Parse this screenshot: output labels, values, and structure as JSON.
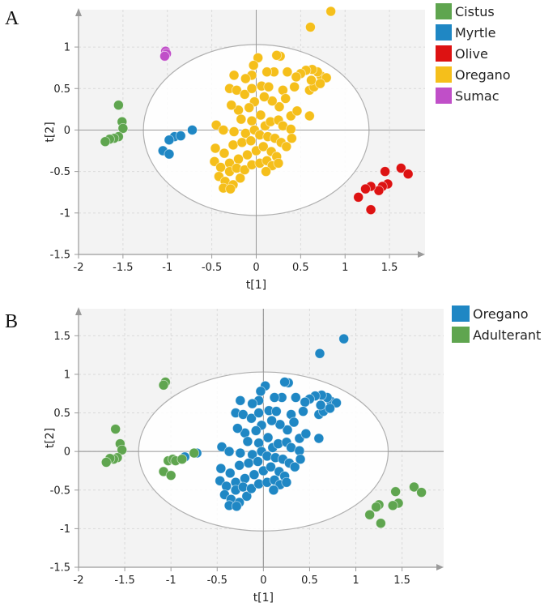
{
  "chart_data": [
    {
      "type": "scatter",
      "panel_label": "A",
      "xlabel": "t[1]",
      "ylabel": "t[2]",
      "xlim": [
        -2,
        1.9
      ],
      "ylim": [
        -1.5,
        1.45
      ],
      "x_ticks": [
        -2,
        -1.5,
        -1,
        -0.5,
        0,
        0.5,
        1,
        1.5
      ],
      "x_tick_labels": [
        "-2",
        "-1.5",
        "-1",
        "-0.5",
        "0",
        "0.5",
        "1",
        "1.5"
      ],
      "y_ticks": [
        -1.5,
        -1,
        -0.5,
        0,
        0.5,
        1
      ],
      "y_tick_labels": [
        "-1.5",
        "-1",
        "-0.5",
        "0",
        "0.5",
        "1"
      ],
      "grid": true,
      "ellipse": {
        "cx": 0,
        "cy": 0,
        "rx": 1.27,
        "ry": 1.03
      },
      "legend_position": "right",
      "series": [
        {
          "name": "Cistus",
          "color": "#5fa54f",
          "points": [
            [
              -1.55,
              0.3
            ],
            [
              -1.51,
              0.1
            ],
            [
              -1.5,
              0.02
            ],
            [
              -1.55,
              -0.08
            ],
            [
              -1.6,
              -0.1
            ],
            [
              -1.65,
              -0.11
            ],
            [
              -1.7,
              -0.14
            ]
          ]
        },
        {
          "name": "Myrtle",
          "color": "#1f87c4",
          "points": [
            [
              -0.92,
              -0.08
            ],
            [
              -0.98,
              -0.12
            ],
            [
              -1.05,
              -0.25
            ],
            [
              -0.98,
              -0.29
            ],
            [
              -0.85,
              -0.07
            ],
            [
              -0.72,
              0.0
            ]
          ]
        },
        {
          "name": "Olive",
          "color": "#dd1212",
          "points": [
            [
              1.63,
              -0.46
            ],
            [
              1.71,
              -0.53
            ],
            [
              1.45,
              -0.5
            ],
            [
              1.48,
              -0.65
            ],
            [
              1.42,
              -0.68
            ],
            [
              1.38,
              -0.73
            ],
            [
              1.29,
              -0.68
            ],
            [
              1.23,
              -0.71
            ],
            [
              1.15,
              -0.81
            ],
            [
              1.29,
              -0.96
            ]
          ]
        },
        {
          "name": "Oregano",
          "color": "#f5bf1b",
          "points": [
            [
              0.84,
              1.43
            ],
            [
              0.61,
              1.24
            ],
            [
              0.27,
              0.89
            ],
            [
              0.23,
              0.9
            ],
            [
              0.02,
              0.87
            ],
            [
              -0.03,
              0.78
            ],
            [
              0.73,
              0.65
            ],
            [
              0.79,
              0.63
            ],
            [
              0.69,
              0.7
            ],
            [
              0.63,
              0.73
            ],
            [
              0.56,
              0.72
            ],
            [
              0.5,
              0.68
            ],
            [
              0.45,
              0.64
            ],
            [
              0.35,
              0.7
            ],
            [
              0.2,
              0.7
            ],
            [
              0.12,
              0.7
            ],
            [
              -0.05,
              0.66
            ],
            [
              -0.12,
              0.62
            ],
            [
              -0.25,
              0.66
            ],
            [
              -0.3,
              0.5
            ],
            [
              -0.22,
              0.48
            ],
            [
              -0.13,
              0.43
            ],
            [
              -0.05,
              0.5
            ],
            [
              0.06,
              0.53
            ],
            [
              0.14,
              0.52
            ],
            [
              0.3,
              0.48
            ],
            [
              0.33,
              0.38
            ],
            [
              0.43,
              0.52
            ],
            [
              0.6,
              0.48
            ],
            [
              0.65,
              0.52
            ],
            [
              0.62,
              0.6
            ],
            [
              0.72,
              0.56
            ],
            [
              0.6,
              0.17
            ],
            [
              0.26,
              0.28
            ],
            [
              0.18,
              0.35
            ],
            [
              0.09,
              0.4
            ],
            [
              -0.02,
              0.34
            ],
            [
              -0.08,
              0.27
            ],
            [
              -0.2,
              0.24
            ],
            [
              -0.28,
              0.3
            ],
            [
              -0.17,
              0.13
            ],
            [
              -0.05,
              0.11
            ],
            [
              0.05,
              0.18
            ],
            [
              0.1,
              0.05
            ],
            [
              0.16,
              0.1
            ],
            [
              0.25,
              0.12
            ],
            [
              0.39,
              0.17
            ],
            [
              0.46,
              0.23
            ],
            [
              0.3,
              0.05
            ],
            [
              0.39,
              0.01
            ],
            [
              -0.45,
              0.06
            ],
            [
              -0.37,
              0.0
            ],
            [
              -0.25,
              -0.02
            ],
            [
              -0.12,
              -0.04
            ],
            [
              -0.02,
              0.0
            ],
            [
              0.04,
              -0.06
            ],
            [
              0.13,
              -0.08
            ],
            [
              0.21,
              -0.1
            ],
            [
              0.28,
              -0.15
            ],
            [
              -0.47,
              -0.38
            ],
            [
              -0.4,
              -0.45
            ],
            [
              -0.3,
              -0.4
            ],
            [
              -0.2,
              -0.35
            ],
            [
              -0.1,
              -0.3
            ],
            [
              0.0,
              -0.25
            ],
            [
              0.08,
              -0.2
            ],
            [
              0.17,
              -0.26
            ],
            [
              0.23,
              -0.32
            ],
            [
              -0.42,
              -0.56
            ],
            [
              -0.35,
              -0.62
            ],
            [
              -0.26,
              -0.66
            ],
            [
              -0.18,
              -0.58
            ],
            [
              -0.3,
              -0.5
            ],
            [
              -0.22,
              -0.46
            ],
            [
              -0.13,
              -0.48
            ],
            [
              -0.05,
              -0.42
            ],
            [
              0.04,
              -0.4
            ],
            [
              0.12,
              -0.37
            ],
            [
              0.18,
              -0.43
            ],
            [
              -0.36,
              -0.28
            ],
            [
              -0.46,
              -0.22
            ],
            [
              -0.26,
              -0.18
            ],
            [
              -0.16,
              -0.15
            ],
            [
              -0.06,
              -0.13
            ],
            [
              -0.37,
              -0.7
            ],
            [
              -0.29,
              -0.71
            ],
            [
              0.11,
              -0.5
            ],
            [
              0.25,
              -0.4
            ],
            [
              0.34,
              -0.2
            ],
            [
              0.4,
              -0.1
            ]
          ]
        },
        {
          "name": "Sumac",
          "color": "#c04fc8",
          "points": [
            [
              -1.02,
              0.95
            ],
            [
              -1.01,
              0.92
            ],
            [
              -1.03,
              0.89
            ]
          ]
        }
      ]
    },
    {
      "type": "scatter",
      "panel_label": "B",
      "xlabel": "t[1]",
      "ylabel": "t[2]",
      "xlim": [
        -2,
        1.95
      ],
      "ylim": [
        -1.5,
        1.85
      ],
      "x_ticks": [
        -2,
        -1.5,
        -1,
        -0.5,
        0,
        0.5,
        1,
        1.5
      ],
      "x_tick_labels": [
        "-2",
        "-1.5",
        "-1",
        "-0.5",
        "0",
        "0.5",
        "1",
        "1.5"
      ],
      "y_ticks": [
        -1.5,
        -1,
        -0.5,
        0,
        0.5,
        1,
        1.5
      ],
      "y_tick_labels": [
        "-1.5",
        "-1",
        "-0.5",
        "0",
        "0.5",
        "1",
        "1.5"
      ],
      "grid": true,
      "ellipse": {
        "cx": 0,
        "cy": 0,
        "rx": 1.35,
        "ry": 1.03
      },
      "legend_position": "right",
      "series": [
        {
          "name": "Oregano",
          "color": "#1f87c4",
          "points": [
            [
              0.87,
              1.46
            ],
            [
              0.61,
              1.27
            ],
            [
              0.27,
              0.89
            ],
            [
              0.23,
              0.9
            ],
            [
              0.02,
              0.85
            ],
            [
              -0.03,
              0.78
            ],
            [
              0.73,
              0.65
            ],
            [
              0.79,
              0.63
            ],
            [
              0.69,
              0.7
            ],
            [
              0.63,
              0.73
            ],
            [
              0.56,
              0.72
            ],
            [
              0.5,
              0.68
            ],
            [
              0.45,
              0.64
            ],
            [
              0.35,
              0.7
            ],
            [
              0.2,
              0.7
            ],
            [
              0.12,
              0.7
            ],
            [
              -0.05,
              0.66
            ],
            [
              -0.12,
              0.62
            ],
            [
              -0.25,
              0.66
            ],
            [
              -0.3,
              0.5
            ],
            [
              -0.22,
              0.48
            ],
            [
              -0.13,
              0.43
            ],
            [
              -0.05,
              0.5
            ],
            [
              0.06,
              0.53
            ],
            [
              0.14,
              0.52
            ],
            [
              0.3,
              0.48
            ],
            [
              0.33,
              0.38
            ],
            [
              0.43,
              0.52
            ],
            [
              0.6,
              0.48
            ],
            [
              0.65,
              0.52
            ],
            [
              0.62,
              0.6
            ],
            [
              0.72,
              0.56
            ],
            [
              0.6,
              0.17
            ],
            [
              0.26,
              0.28
            ],
            [
              0.18,
              0.35
            ],
            [
              0.09,
              0.4
            ],
            [
              -0.02,
              0.34
            ],
            [
              -0.08,
              0.27
            ],
            [
              -0.2,
              0.24
            ],
            [
              -0.28,
              0.3
            ],
            [
              -0.17,
              0.13
            ],
            [
              -0.05,
              0.11
            ],
            [
              0.05,
              0.18
            ],
            [
              0.1,
              0.05
            ],
            [
              0.16,
              0.1
            ],
            [
              0.25,
              0.12
            ],
            [
              0.39,
              0.17
            ],
            [
              0.46,
              0.23
            ],
            [
              0.3,
              0.05
            ],
            [
              0.39,
              0.01
            ],
            [
              -0.45,
              0.06
            ],
            [
              -0.37,
              0.0
            ],
            [
              -0.25,
              -0.02
            ],
            [
              -0.12,
              -0.04
            ],
            [
              -0.02,
              0.0
            ],
            [
              0.04,
              -0.06
            ],
            [
              0.13,
              -0.08
            ],
            [
              0.21,
              -0.1
            ],
            [
              0.28,
              -0.15
            ],
            [
              -0.47,
              -0.38
            ],
            [
              -0.4,
              -0.45
            ],
            [
              -0.3,
              -0.4
            ],
            [
              -0.2,
              -0.35
            ],
            [
              -0.1,
              -0.3
            ],
            [
              0.0,
              -0.25
            ],
            [
              0.08,
              -0.2
            ],
            [
              0.17,
              -0.26
            ],
            [
              0.23,
              -0.32
            ],
            [
              -0.42,
              -0.56
            ],
            [
              -0.35,
              -0.62
            ],
            [
              -0.26,
              -0.66
            ],
            [
              -0.18,
              -0.58
            ],
            [
              -0.3,
              -0.5
            ],
            [
              -0.22,
              -0.46
            ],
            [
              -0.13,
              -0.48
            ],
            [
              -0.05,
              -0.42
            ],
            [
              0.04,
              -0.4
            ],
            [
              0.12,
              -0.37
            ],
            [
              0.18,
              -0.43
            ],
            [
              -0.36,
              -0.28
            ],
            [
              -0.46,
              -0.22
            ],
            [
              -0.26,
              -0.18
            ],
            [
              -0.16,
              -0.15
            ],
            [
              -0.06,
              -0.13
            ],
            [
              -0.37,
              -0.7
            ],
            [
              -0.29,
              -0.71
            ],
            [
              0.11,
              -0.5
            ],
            [
              0.25,
              -0.4
            ],
            [
              0.34,
              -0.2
            ],
            [
              0.4,
              -0.1
            ],
            [
              -0.72,
              -0.02
            ],
            [
              -0.85,
              -0.07
            ]
          ]
        },
        {
          "name": "Adulterant",
          "color": "#5fa54f",
          "points": [
            [
              -1.06,
              0.9
            ],
            [
              -1.08,
              0.86
            ],
            [
              -1.6,
              0.29
            ],
            [
              -1.55,
              0.1
            ],
            [
              -1.53,
              0.02
            ],
            [
              -1.58,
              -0.08
            ],
            [
              -1.62,
              -0.1
            ],
            [
              -1.66,
              -0.09
            ],
            [
              -1.7,
              -0.14
            ],
            [
              -1.03,
              -0.12
            ],
            [
              -0.98,
              -0.1
            ],
            [
              -0.95,
              -0.12
            ],
            [
              -0.88,
              -0.1
            ],
            [
              -0.75,
              -0.02
            ],
            [
              -1.08,
              -0.26
            ],
            [
              -1.0,
              -0.31
            ],
            [
              1.63,
              -0.46
            ],
            [
              1.71,
              -0.53
            ],
            [
              1.43,
              -0.52
            ],
            [
              1.46,
              -0.67
            ],
            [
              1.4,
              -0.7
            ],
            [
              1.25,
              -0.69
            ],
            [
              1.22,
              -0.72
            ],
            [
              1.15,
              -0.82
            ],
            [
              1.27,
              -0.93
            ]
          ]
        }
      ]
    }
  ]
}
